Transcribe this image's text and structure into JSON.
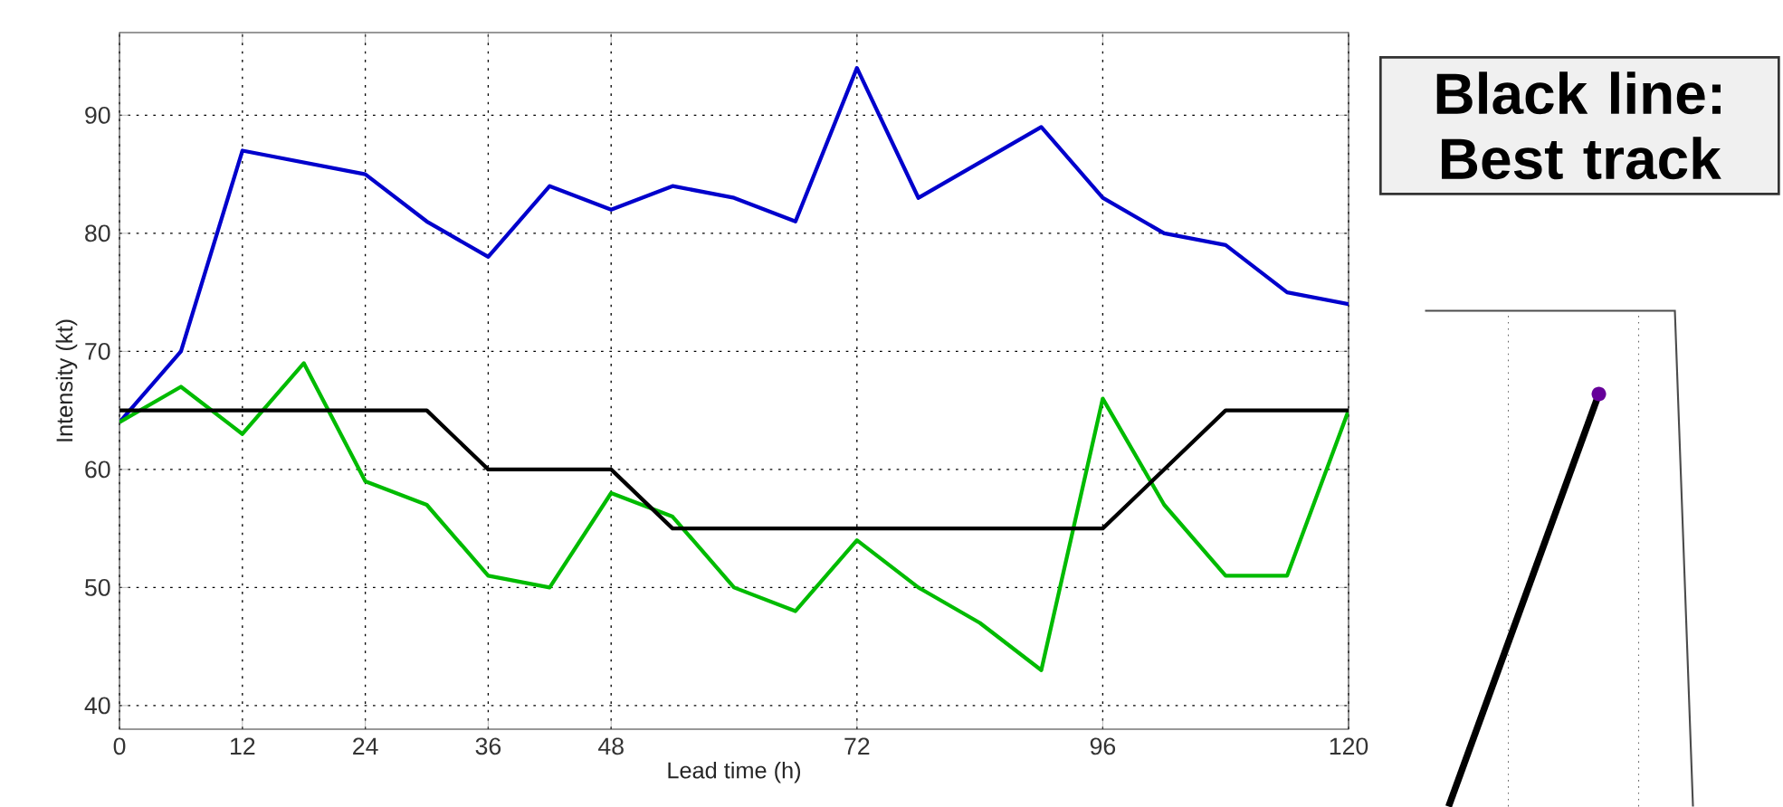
{
  "chart_data": {
    "type": "line",
    "xlabel": "Lead time (h)",
    "ylabel": "Intensity (kt)",
    "x": [
      0,
      6,
      12,
      18,
      24,
      30,
      36,
      42,
      48,
      54,
      60,
      66,
      72,
      78,
      84,
      90,
      96,
      102,
      108,
      114,
      120
    ],
    "series": [
      {
        "color": "#0000cc",
        "values": [
          64,
          70,
          87,
          86,
          85,
          81,
          78,
          84,
          82,
          84,
          83,
          81,
          94,
          83,
          86,
          89,
          83,
          80,
          79,
          75,
          74
        ]
      },
      {
        "color": "#00bb00",
        "values": [
          64,
          67,
          63,
          69,
          59,
          57,
          51,
          50,
          58,
          56,
          50,
          48,
          54,
          50,
          47,
          43,
          66,
          57,
          51,
          51,
          65
        ]
      },
      {
        "color": "#000000",
        "values": [
          65,
          65,
          65,
          65,
          65,
          65,
          60,
          60,
          60,
          55,
          55,
          55,
          55,
          55,
          55,
          55,
          55,
          60,
          65,
          65,
          65
        ]
      }
    ],
    "xlim": [
      0,
      120
    ],
    "ylim": [
      38,
      97
    ],
    "xticks": [
      0,
      12,
      24,
      36,
      48,
      72,
      96,
      120
    ],
    "yticks": [
      40,
      50,
      60,
      70,
      80,
      90
    ],
    "grid": true,
    "marker": "none",
    "line_style": "solid",
    "annotations": [
      "Black line: Best track"
    ]
  }
}
